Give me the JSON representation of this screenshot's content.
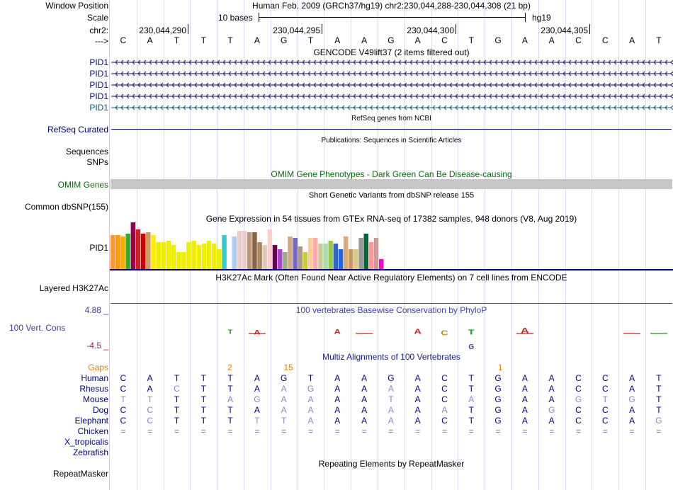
{
  "header": {
    "window_position_label": "Window Position",
    "scale_label": "Scale",
    "chrom_label": "chr2:",
    "arrow_label": "--->",
    "assembly_title": "Human Feb. 2009 (GRCh37/hg19)   chr2:230,044,288-230,044,308 (21 bp)",
    "scale_text": "10 bases",
    "assembly_short": "hg19",
    "positions": [
      "230,044,290",
      "230,044,295",
      "230,044,300",
      "230,044,305"
    ],
    "bases": [
      "C",
      "A",
      "T",
      "T",
      "T",
      "A",
      "G",
      "T",
      "A",
      "A",
      "G",
      "A",
      "C",
      "T",
      "G",
      "A",
      "A",
      "C",
      "C",
      "A",
      "T"
    ]
  },
  "gencode": {
    "title": "GENCODE V49lift37 (2 items filtered out)",
    "labels": [
      "PID1",
      "PID1",
      "PID1",
      "PID1",
      "PID1"
    ],
    "colors": [
      "#0c0c78",
      "#0c0c78",
      "#0c0c78",
      "#0c0c78",
      "#0c5c78"
    ]
  },
  "refseq": {
    "title": "RefSeq genes from NCBI",
    "label": "RefSeq Curated"
  },
  "publications": {
    "title": "Publications: Sequences in Scientific Articles",
    "label1": "Sequences",
    "label2": "SNPs"
  },
  "omim": {
    "title": "OMIM Gene Phenotypes - Dark Green Can Be Disease-causing",
    "label": "OMIM Genes"
  },
  "dbsnp": {
    "title": "Short Genetic Variants from dbSNP release 155",
    "label": "Common dbSNP(155)"
  },
  "gtex": {
    "title": "Gene Expression in 54 tissues from GTEx RNA-seq of 17382 samples, 948 donors (V8, Aug 2019)",
    "label": "PID1",
    "chart_data": {
      "type": "bar",
      "title": "Gene Expression in 54 tissues from GTEx RNA-seq of 17382 samples, 948 donors (V8, Aug 2019)",
      "values": [
        48,
        48,
        46,
        50,
        66,
        56,
        50,
        52,
        48,
        38,
        38,
        40,
        34,
        24,
        24,
        38,
        40,
        34,
        36,
        40,
        36,
        28,
        48,
        0,
        46,
        54,
        54,
        52,
        52,
        38,
        34,
        56,
        34,
        28,
        24,
        46,
        44,
        32,
        24,
        44,
        44,
        36,
        36,
        40,
        36,
        28,
        46,
        28,
        28,
        44,
        50,
        38,
        44,
        14
      ],
      "colors": [
        "#ff9933",
        "#ff9900",
        "#ffaa00",
        "#33aa33",
        "#99004c",
        "#cc2222",
        "#cc0000",
        "#cc9966",
        "#ffee00",
        "#eeee00",
        "#eeee00",
        "#eeee00",
        "#eeee00",
        "#eeee00",
        "#eeee00",
        "#eeee00",
        "#eeee00",
        "#eeee00",
        "#eeee00",
        "#eeee00",
        "#eeee00",
        "#eeee00",
        "#33cccc",
        "#ffffff",
        "#aaccee",
        "#eecccc",
        "#eecccc",
        "#bb9977",
        "#886644",
        "#aa8855",
        "#ddccbb",
        "#ffcccc",
        "#660055",
        "#aa44cc",
        "#99aa88",
        "#ccaa88",
        "#7766cc",
        "#aa9988",
        "#cccc33",
        "#ffcc99",
        "#ffaaaa",
        "#cccc99",
        "#aaddaa",
        "#99cc44",
        "#3366cc",
        "#2266dd",
        "#ddaa77",
        "#cc9966",
        "#ddcc88",
        "#999999",
        "#006633",
        "#ff9999",
        "#cc9999",
        "#ff00cc"
      ]
    }
  },
  "h3k27ac": {
    "title": "H3K27Ac Mark (Often Found Near Active Regulatory Elements) on 7 cell lines from ENCODE",
    "label": "Layered H3K27Ac"
  },
  "cons": {
    "title": "100 vertebrates Basewise Conservation by PhyloP",
    "label": "100 Vert. Cons",
    "ymax": "4.88 _",
    "ymin": "-4.5 _"
  },
  "multiz": {
    "title": "Multiz Alignments of 100 Vertebrates",
    "gaps_label": "Gaps",
    "gap_marks": [
      {
        "text": "2",
        "col": 4.5
      },
      {
        "text": "15",
        "col": 6.6
      },
      {
        "text": "1",
        "col": 14.6
      }
    ],
    "species": [
      {
        "name": "Human",
        "bases": [
          "C",
          "A",
          "T",
          "T",
          "T",
          "A",
          "G",
          "T",
          "A",
          "A",
          "G",
          "A",
          "C",
          "T",
          "G",
          "A",
          "A",
          "C",
          "C",
          "A",
          "T"
        ],
        "match": [
          1,
          1,
          1,
          1,
          1,
          1,
          1,
          1,
          1,
          1,
          1,
          1,
          1,
          1,
          1,
          1,
          1,
          1,
          1,
          1,
          1
        ]
      },
      {
        "name": "Rhesus",
        "bases": [
          "C",
          "A",
          "C",
          "T",
          "T",
          "A",
          "A",
          "G",
          "A",
          "A",
          "A",
          "A",
          "C",
          "T",
          "G",
          "A",
          "A",
          "C",
          "C",
          "A",
          "T"
        ],
        "match": [
          1,
          1,
          0,
          1,
          1,
          1,
          0,
          0,
          1,
          1,
          0,
          1,
          1,
          1,
          1,
          1,
          1,
          1,
          1,
          1,
          1
        ]
      },
      {
        "name": "Mouse",
        "bases": [
          "T",
          "T",
          "T",
          "T",
          "A",
          "G",
          "A",
          "A",
          "A",
          "A",
          "T",
          "A",
          "C",
          "A",
          "G",
          "A",
          "A",
          "G",
          "T",
          "G",
          "T"
        ],
        "match": [
          0,
          0,
          1,
          1,
          0,
          0,
          0,
          0,
          1,
          1,
          0,
          1,
          1,
          0,
          1,
          1,
          1,
          0,
          0,
          0,
          1
        ]
      },
      {
        "name": "Dog",
        "bases": [
          "C",
          "C",
          "T",
          "T",
          "T",
          "A",
          "A",
          "A",
          "A",
          "A",
          "A",
          "A",
          "A",
          "T",
          "G",
          "A",
          "G",
          "C",
          "C",
          "A",
          "T"
        ],
        "match": [
          1,
          0,
          1,
          1,
          1,
          1,
          0,
          0,
          1,
          1,
          0,
          1,
          0,
          1,
          1,
          1,
          0,
          1,
          1,
          1,
          1
        ]
      },
      {
        "name": "Elephant",
        "bases": [
          "C",
          "C",
          "T",
          "T",
          "T",
          "T",
          "T",
          "A",
          "A",
          "A",
          "A",
          "A",
          "C",
          "T",
          "G",
          "A",
          "A",
          "C",
          "C",
          "A",
          "G"
        ],
        "match": [
          1,
          0,
          1,
          1,
          1,
          0,
          0,
          0,
          1,
          1,
          0,
          1,
          1,
          1,
          1,
          1,
          1,
          1,
          1,
          1,
          0
        ]
      },
      {
        "name": "Chicken",
        "bases": [
          "=",
          "=",
          "=",
          "=",
          "=",
          "=",
          "=",
          "=",
          "=",
          "=",
          "=",
          "=",
          "=",
          "=",
          "=",
          "=",
          "=",
          "=",
          "=",
          "=",
          "="
        ],
        "match": [
          0,
          0,
          0,
          0,
          0,
          0,
          0,
          0,
          0,
          0,
          0,
          0,
          0,
          0,
          0,
          0,
          0,
          0,
          0,
          0,
          0
        ]
      },
      {
        "name": "X_tropicalis",
        "bases": [],
        "match": []
      },
      {
        "name": "Zebrafish",
        "bases": [],
        "match": []
      }
    ]
  },
  "repeatmasker": {
    "title": "Repeating Elements by RepeatMasker",
    "label": "RepeatMasker"
  }
}
